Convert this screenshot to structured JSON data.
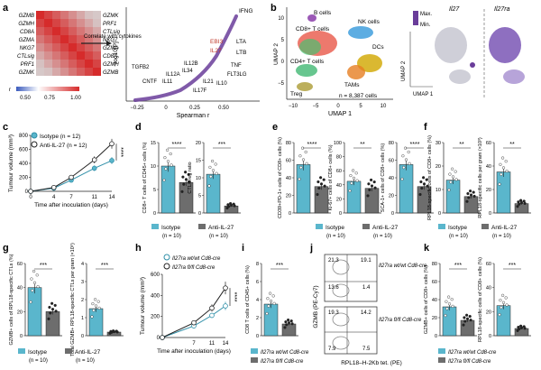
{
  "panels": {
    "a": "a",
    "b": "b",
    "c": "c",
    "d": "d",
    "e": "e",
    "f": "f",
    "g": "g",
    "h": "h",
    "i": "i",
    "j": "j",
    "k": "k"
  },
  "colors": {
    "teal": "#5ab6cc",
    "teal_dark": "#2f8fa8",
    "grey_bar": "#6d6d6d",
    "heat_red": "#d62b2b",
    "purple": "#6a3d9a",
    "label_red": "#c0392b"
  },
  "panel_a": {
    "genes": [
      "GZMB",
      "GZMH",
      "CD8A",
      "GZMA",
      "NKG7",
      "CTLsig",
      "PRF1",
      "GZMK"
    ],
    "arrow_label": "Correlate with cytokines",
    "colorbar_ticks": [
      "r",
      "0.50",
      "0.75",
      "1.00"
    ],
    "volcano": {
      "xlabel": "Spearman r",
      "ylabel": "−log10[P]",
      "xticks": [
        "−0.25",
        "0",
        "0.25",
        "0.50"
      ],
      "labels_black": [
        "IFNG",
        "LTA",
        "LTB",
        "IL12B",
        "IL34",
        "TNF",
        "FLT3LG",
        "IL21",
        "IL10",
        "IL17F",
        "IL11",
        "IL12A",
        "TGFB2",
        "CNTF"
      ],
      "labels_red": [
        "EBI3",
        "IL27"
      ]
    }
  },
  "panel_b": {
    "xlabel": "UMAP 1",
    "ylabel": "UMAP 2",
    "xticks": [
      "−10",
      "−5",
      "0",
      "5",
      "10"
    ],
    "yticks": [
      "10",
      "5",
      "0",
      "−5"
    ],
    "clusters": [
      "B cells",
      "CD8+ T cells",
      "NK cells",
      "DCs",
      "CD4+ T cells",
      "TAMs",
      "Treg"
    ],
    "n_text": "n = 8,387 cells",
    "gene1": "Il27",
    "gene2": "Il27ra",
    "legend_max": "Max.",
    "legend_min": "Min.",
    "small_x": "UMAP 1",
    "small_y": "UMAP 2"
  },
  "panel_c": {
    "ylabel": "Tumour volume (mm³)",
    "xlabel": "Time after inoculation (days)",
    "legend": [
      "Isotype (n = 12)",
      "Anti-IL-27 (n = 12)"
    ],
    "sig": "****"
  },
  "chart_data": [
    {
      "type": "line",
      "title": "",
      "xlabel": "Time after inoculation (days)",
      "ylabel": "Tumour volume (mm³)",
      "x": [
        0,
        4,
        7,
        11,
        14
      ],
      "xticks": [
        0,
        4,
        7,
        11,
        14
      ],
      "yticks": [
        0,
        200,
        400,
        600,
        800
      ],
      "ylim": [
        0,
        800
      ],
      "series": [
        {
          "name": "Isotype (n = 12)",
          "values": [
            0,
            45,
            160,
            330,
            440
          ],
          "err": [
            0,
            10,
            25,
            40,
            50
          ]
        },
        {
          "name": "Anti-IL-27 (n = 12)",
          "values": [
            0,
            55,
            200,
            450,
            680
          ],
          "err": [
            0,
            10,
            30,
            50,
            70
          ]
        }
      ]
    },
    {
      "type": "line",
      "title": "",
      "xlabel": "Time after inoculation (days)",
      "ylabel": "Tumour volume (mm³)",
      "x": [
        0,
        7,
        11,
        14
      ],
      "xticks": [
        7,
        11,
        14
      ],
      "yticks": [
        0,
        200,
        400,
        600
      ],
      "ylim": [
        0,
        600
      ],
      "series": [
        {
          "name": "Il27ra wt/wt Cd8-cre",
          "values": [
            0,
            110,
            210,
            300
          ],
          "err": [
            0,
            15,
            25,
            40
          ]
        },
        {
          "name": "Il27ra fl/fl Cd8-cre",
          "values": [
            0,
            140,
            280,
            470
          ],
          "err": [
            0,
            20,
            35,
            60
          ]
        }
      ]
    }
  ],
  "bar_panels": {
    "d1": {
      "ylabel": "CD8+ T cells of CD45+ cells (%)",
      "yticks": [
        "0",
        "5",
        "10",
        "15"
      ],
      "ymax": 15,
      "vals": [
        10,
        6.5
      ],
      "sig": "****"
    },
    "d2": {
      "ylabel": "CTL/Treg ratio",
      "yticks": [
        "0",
        "5",
        "10",
        "15",
        "20"
      ],
      "ymax": 20,
      "vals": [
        11,
        2
      ],
      "sig": "***"
    },
    "e1": {
      "ylabel": "CD39+PD-1+ cells of CD8+ cells (%)",
      "yticks": [
        "0",
        "20",
        "40",
        "60",
        "80"
      ],
      "ymax": 80,
      "vals": [
        55,
        30
      ],
      "sig": "****"
    },
    "e2": {
      "ylabel": "Ki-67+ cells of CD8+ cells (%)",
      "yticks": [
        "0",
        "20",
        "40",
        "60",
        "80",
        "100"
      ],
      "ymax": 100,
      "vals": [
        45,
        35
      ],
      "sig": "**"
    },
    "e3": {
      "ylabel": "SCA-1+ cells of CD8+ cells (%)",
      "yticks": [
        "0",
        "20",
        "40",
        "60",
        "80"
      ],
      "ymax": 80,
      "vals": [
        55,
        30
      ],
      "sig": "****"
    },
    "f1": {
      "ylabel": "RPL18-specific cells of CD8+ cells (%)",
      "yticks": [
        "0",
        "10",
        "20",
        "30"
      ],
      "ymax": 30,
      "vals": [
        14,
        7
      ],
      "sig": "**"
    },
    "f2": {
      "ylabel": "RPL18-specific cells per gram (×10³)",
      "yticks": [
        "0",
        "20",
        "40",
        "60"
      ],
      "ymax": 60,
      "vals": [
        35,
        8
      ],
      "sig": "**"
    },
    "g1": {
      "ylabel": "GZMB+ cells of RPL18-specific CTLs (%)",
      "yticks": [
        "0",
        "20",
        "40",
        "60"
      ],
      "ymax": 60,
      "vals": [
        40,
        20
      ],
      "sig": "***"
    },
    "g2": {
      "ylabel": "Total GZMB+ RPL18-specific CTLs per gram (×10⁵)",
      "yticks": [
        "0",
        "1",
        "2",
        "3",
        "4"
      ],
      "ymax": 4,
      "vals": [
        1.5,
        0.2
      ],
      "sig": "***"
    },
    "i1": {
      "ylabel": "CD8 T cells of CD45+ cells (%)",
      "yticks": [
        "0",
        "2",
        "4",
        "6",
        "8"
      ],
      "ymax": 8,
      "vals": [
        3.5,
        1.3
      ],
      "sig": "***"
    },
    "k1": {
      "ylabel": "GZMB+ cells of CD8+ cells (%)",
      "yticks": [
        "0",
        "20",
        "40",
        "60",
        "80"
      ],
      "ymax": 80,
      "vals": [
        32,
        17
      ],
      "sig": "***"
    },
    "k2": {
      "ylabel": "RPL18-specific cells of CD8+ cells (%)",
      "yticks": [
        "0",
        "20",
        "40",
        "60"
      ],
      "ymax": 60,
      "vals": [
        25,
        6
      ],
      "sig": "***"
    }
  },
  "legends": {
    "isotype": "Isotype",
    "anti": "Anti-IL-27",
    "n10": "(n = 10)",
    "wt": "Il27ra wt/wt Cd8-cre",
    "fl": "Il27ra fl/fl Cd8-cre"
  },
  "panel_j": {
    "ylabel": "GZMB (PE-Cy7)",
    "xlabel": "RPL18–H-2Kb tet. (PE)",
    "top": {
      "q1": "21.3",
      "q2": "19.1",
      "q3": "13.6",
      "q4": "1.4"
    },
    "bottom": {
      "q1": "19.3",
      "q2": "14.2",
      "q3": "7.9",
      "q4": "7.5"
    },
    "label_top": "Il27ra wt/wt Cd8-cre",
    "label_bottom": "Il27ra fl/fl Cd8-cre"
  }
}
